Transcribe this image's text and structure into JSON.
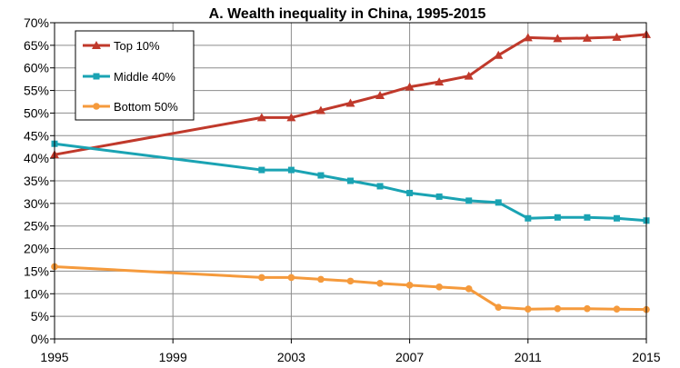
{
  "chart_data": {
    "type": "line",
    "title": "A. Wealth inequality in China, 1995-2015",
    "xlabel": "",
    "ylabel": "",
    "xlim": [
      1995,
      2015
    ],
    "ylim": [
      0,
      70
    ],
    "x_ticks": [
      1995,
      1999,
      2003,
      2007,
      2011,
      2015
    ],
    "y_ticks": [
      0,
      5,
      10,
      15,
      20,
      25,
      30,
      35,
      40,
      45,
      50,
      55,
      60,
      65,
      70
    ],
    "y_tick_labels": [
      "0%",
      "5%",
      "10%",
      "15%",
      "20%",
      "25%",
      "30%",
      "35%",
      "40%",
      "45%",
      "50%",
      "55%",
      "60%",
      "65%",
      "70%"
    ],
    "x_tick_labels": [
      "1995",
      "1999",
      "2003",
      "2007",
      "2011",
      "2015"
    ],
    "grid": "vertical-and-horizontal",
    "legend_position": "top-left",
    "series": [
      {
        "name": "Top 10%",
        "color": "#c0392b",
        "marker": "triangle",
        "x": [
          1995,
          2002,
          2003,
          2004,
          2005,
          2006,
          2007,
          2008,
          2009,
          2010,
          2011,
          2012,
          2013,
          2014,
          2015
        ],
        "values": [
          40.8,
          49.0,
          49.0,
          50.6,
          52.2,
          53.9,
          55.8,
          56.9,
          58.2,
          62.8,
          66.7,
          66.5,
          66.6,
          66.8,
          67.4
        ]
      },
      {
        "name": "Middle 40%",
        "color": "#1aa3b3",
        "marker": "square",
        "x": [
          1995,
          2002,
          2003,
          2004,
          2005,
          2006,
          2007,
          2008,
          2009,
          2010,
          2011,
          2012,
          2013,
          2014,
          2015
        ],
        "values": [
          43.2,
          37.4,
          37.4,
          36.2,
          35.0,
          33.8,
          32.3,
          31.5,
          30.6,
          30.2,
          26.7,
          26.9,
          26.9,
          26.7,
          26.2
        ]
      },
      {
        "name": "Bottom 50%",
        "color": "#f59a3c",
        "marker": "circle",
        "x": [
          1995,
          2002,
          2003,
          2004,
          2005,
          2006,
          2007,
          2008,
          2009,
          2010,
          2011,
          2012,
          2013,
          2014,
          2015
        ],
        "values": [
          16.0,
          13.6,
          13.6,
          13.2,
          12.8,
          12.3,
          11.9,
          11.5,
          11.1,
          7.0,
          6.6,
          6.7,
          6.7,
          6.6,
          6.5
        ]
      }
    ]
  }
}
